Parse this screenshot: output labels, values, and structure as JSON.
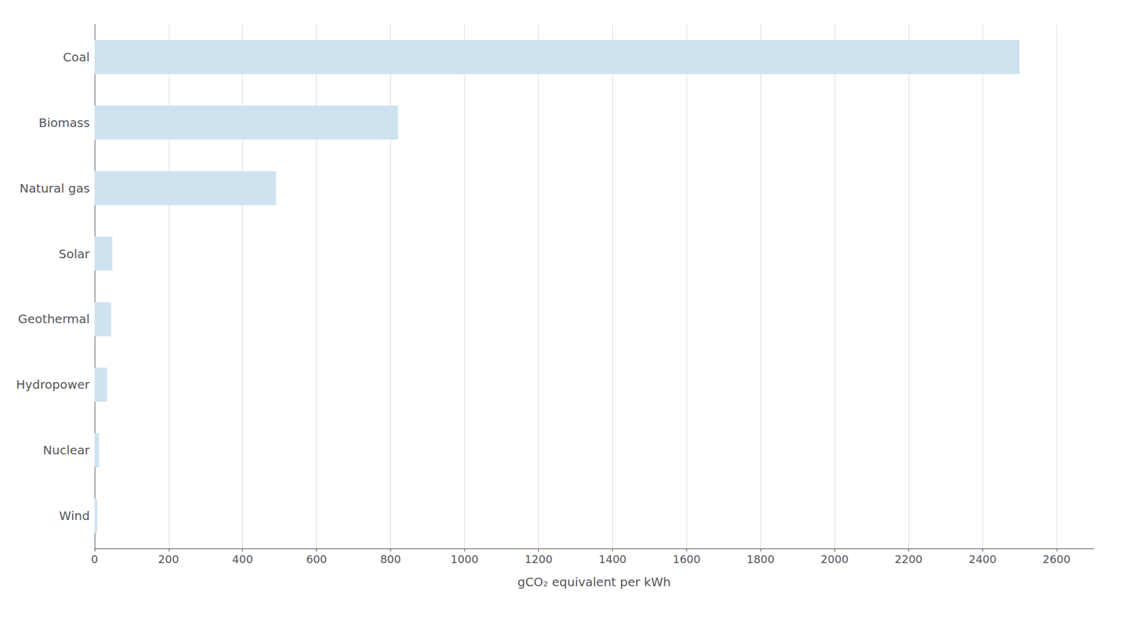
{
  "chart_data": {
    "type": "bar",
    "orientation": "horizontal",
    "categories": [
      "Coal",
      "Biomass",
      "Natural gas",
      "Solar",
      "Geothermal",
      "Hydropower",
      "Nuclear",
      "Wind"
    ],
    "values": [
      2500,
      820,
      490,
      48,
      45,
      34,
      12,
      7
    ],
    "color": "#cfe2ef",
    "xlabel": "gCO₂ equivalent per kWh",
    "xlim": [
      0,
      2700
    ],
    "xticks": [
      0,
      200,
      400,
      600,
      800,
      1000,
      1200,
      1400,
      1600,
      1800,
      2000,
      2200,
      2400,
      2600
    ],
    "grid": true
  }
}
